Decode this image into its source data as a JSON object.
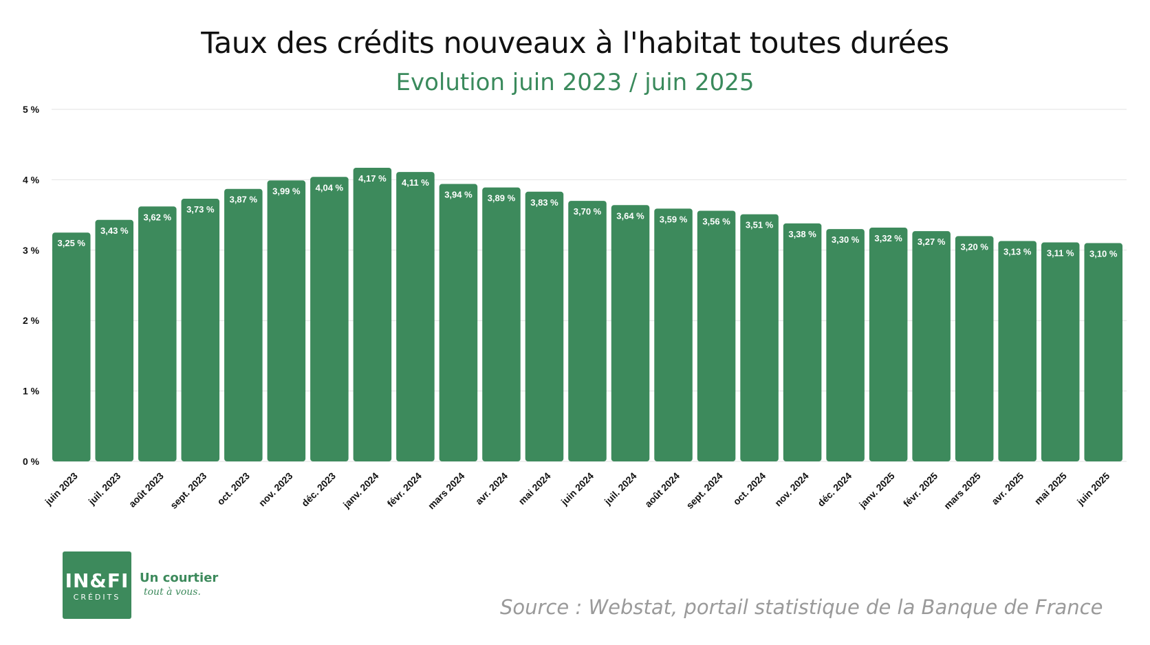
{
  "colors": {
    "bar": "#3d8a5c",
    "subtitle": "#3a8a5c",
    "grid": "#e2e2e2",
    "source": "#9a9a9a"
  },
  "logo": {
    "main": "IN&FI",
    "sub": "CRÉDITS",
    "tagline": "Un courtier",
    "tagline2": "tout à vous."
  },
  "source": "Source : Webstat, portail statistique de la Banque de France",
  "chart_data": {
    "type": "bar",
    "title": "Taux des crédits nouveaux à l'habitat toutes durées",
    "subtitle": "Evolution juin 2023 / juin 2025",
    "xlabel": "",
    "ylabel": "",
    "ylim": [
      0,
      5
    ],
    "yticks": [
      0,
      1,
      2,
      3,
      4,
      5
    ],
    "ytick_labels": [
      "0 %",
      "1 %",
      "2 %",
      "3 %",
      "4 %",
      "5 %"
    ],
    "grid": true,
    "categories": [
      "juin 2023",
      "juil. 2023",
      "août 2023",
      "sept. 2023",
      "oct. 2023",
      "nov. 2023",
      "déc. 2023",
      "janv. 2024",
      "févr. 2024",
      "mars 2024",
      "avr. 2024",
      "mai 2024",
      "juin 2024",
      "juil. 2024",
      "août 2024",
      "sept. 2024",
      "oct. 2024",
      "nov. 2024",
      "déc. 2024",
      "janv. 2025",
      "févr. 2025",
      "mars 2025",
      "avr. 2025",
      "mai 2025",
      "juin 2025"
    ],
    "values": [
      3.25,
      3.43,
      3.62,
      3.73,
      3.87,
      3.99,
      4.04,
      4.17,
      4.11,
      3.94,
      3.89,
      3.83,
      3.7,
      3.64,
      3.59,
      3.56,
      3.51,
      3.38,
      3.3,
      3.32,
      3.27,
      3.2,
      3.13,
      3.11,
      3.1
    ],
    "labels": [
      "3,25 %",
      "3,43 %",
      "3,62 %",
      "3,73 %",
      "3,87 %",
      "3,99 %",
      "4,04 %",
      "4,17 %",
      "4,11 %",
      "3,94 %",
      "3,89 %",
      "3,83 %",
      "3,70 %",
      "3,64 %",
      "3,59 %",
      "3,56 %",
      "3,51 %",
      "3,38 %",
      "3,30 %",
      "3,32 %",
      "3,27 %",
      "3,20 %",
      "3,13 %",
      "3,11 %",
      "3,10 %"
    ]
  }
}
